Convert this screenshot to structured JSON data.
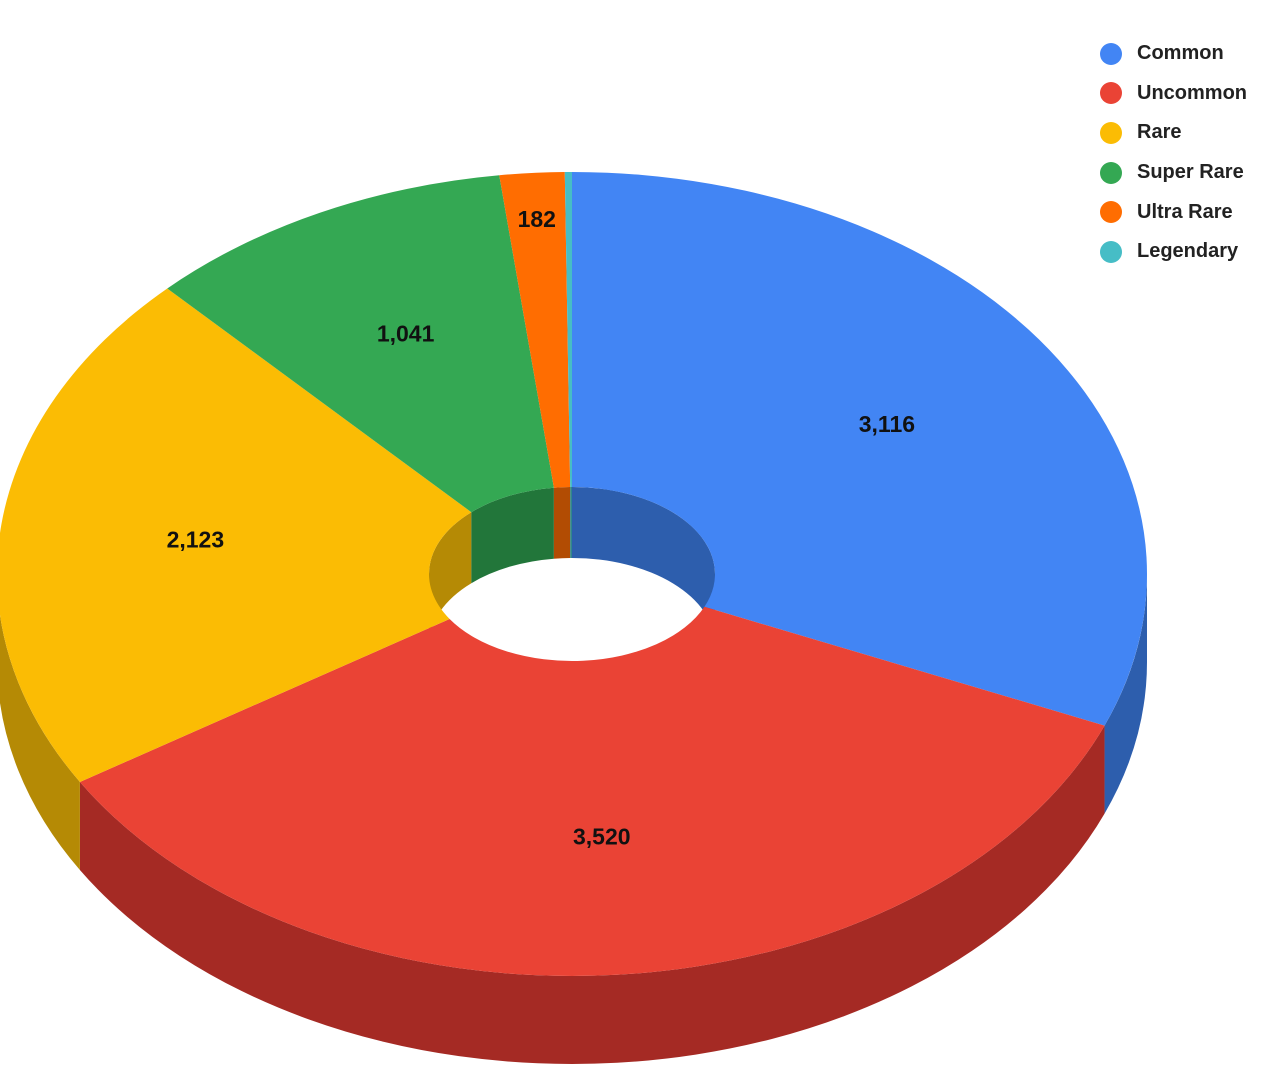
{
  "chart_data": {
    "type": "pie",
    "variant": "3d-donut",
    "title": "",
    "legend_position": "top-right",
    "slices": [
      {
        "label": "Common",
        "value": 3116,
        "value_label": "3,116",
        "color": "#4285F4",
        "side_color": "#2D5EAD"
      },
      {
        "label": "Uncommon",
        "value": 3520,
        "value_label": "3,520",
        "color": "#EA4335",
        "side_color": "#A52A24"
      },
      {
        "label": "Rare",
        "value": 2123,
        "value_label": "2,123",
        "color": "#FBBC04",
        "side_color": "#B58A05"
      },
      {
        "label": "Super Rare",
        "value": 1041,
        "value_label": "1,041",
        "color": "#34A853",
        "side_color": "#22763A"
      },
      {
        "label": "Ultra Rare",
        "value": 182,
        "value_label": "182",
        "color": "#FF6D01",
        "side_color": "#B24C03"
      },
      {
        "label": "Legendary",
        "value": 20,
        "value_label": "",
        "color": "#46BDC6",
        "side_color": "#2F868C"
      }
    ]
  }
}
